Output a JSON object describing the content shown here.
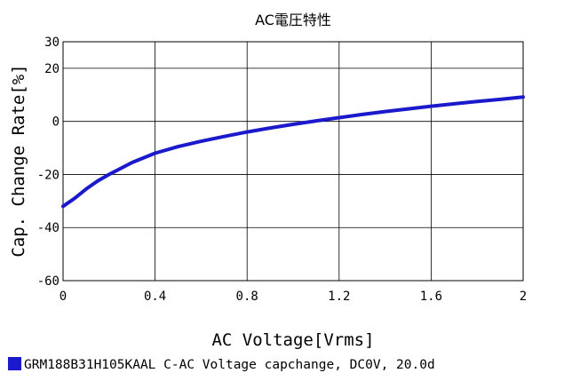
{
  "chart_data": {
    "type": "line",
    "title": "AC電圧特性",
    "xlabel": "AC Voltage[Vrms]",
    "ylabel": "Cap. Change Rate[%]",
    "xlim": [
      0,
      2
    ],
    "ylim": [
      -60,
      30
    ],
    "x_ticks": [
      0,
      0.4,
      0.8,
      1.2,
      1.6,
      2
    ],
    "x_tick_labels": [
      "0",
      "0.4",
      "0.8",
      "1.2",
      "1.6",
      "2"
    ],
    "y_ticks": [
      -60,
      -40,
      -20,
      0,
      20,
      30
    ],
    "y_tick_labels": [
      "-60",
      "-40",
      "-20",
      "0",
      "20",
      "30"
    ],
    "grid": true,
    "legend_position": "bottom",
    "series": [
      {
        "name": "GRM188B31H105KAAL C-AC Voltage capchange, DC0V, 20.0d",
        "color": "#1a1acc",
        "x": [
          0,
          0.05,
          0.1,
          0.15,
          0.2,
          0.3,
          0.4,
          0.5,
          0.6,
          0.7,
          0.8,
          0.9,
          1.0,
          1.1,
          1.2,
          1.3,
          1.4,
          1.5,
          1.6,
          1.7,
          1.8,
          1.9,
          2.0
        ],
        "y": [
          -32,
          -29,
          -25.5,
          -22.5,
          -20,
          -15.5,
          -12,
          -9.5,
          -7.5,
          -5.7,
          -4,
          -2.5,
          -1.1,
          0.2,
          1.4,
          2.6,
          3.7,
          4.7,
          5.7,
          6.6,
          7.5,
          8.3,
          9.2
        ]
      }
    ]
  }
}
